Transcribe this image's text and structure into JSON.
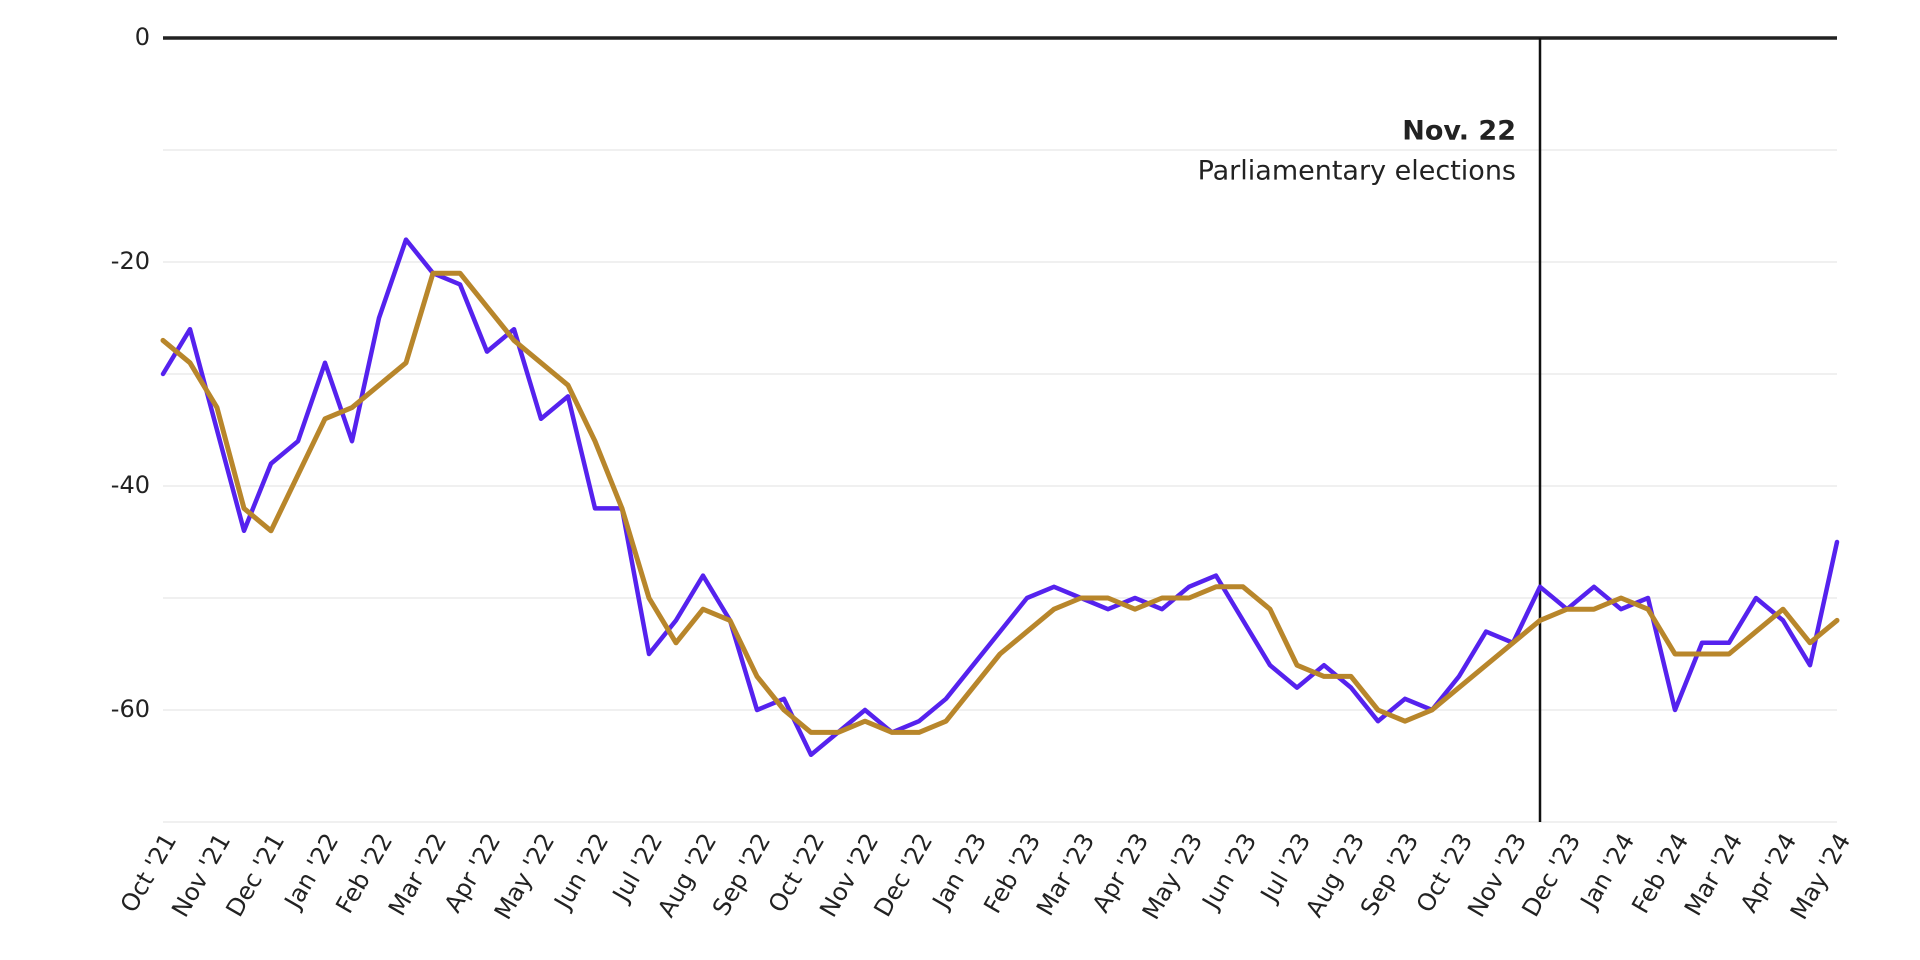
{
  "chart_data": {
    "type": "line",
    "categories": [
      "Oct '21",
      null,
      "Nov '21",
      null,
      "Dec '21",
      null,
      "Jan '22",
      null,
      "Feb '22",
      null,
      "Mar '22",
      null,
      "Apr '22",
      null,
      "May '22",
      null,
      "Jun '22",
      null,
      "Jul '22",
      null,
      "Aug '22",
      null,
      "Sep '22",
      null,
      "Oct '22",
      null,
      "Nov '22",
      null,
      "Dec '22",
      null,
      "Jan '23",
      null,
      "Feb '23",
      null,
      "Mar '23",
      null,
      "Apr '23",
      null,
      "May '23",
      null,
      "Jun '23",
      null,
      "Jul '23",
      null,
      "Aug '23",
      null,
      "Sep '23",
      null,
      "Oct '23",
      null,
      "Nov '23",
      null,
      "Dec '23",
      null,
      "Jan '24",
      null,
      "Feb '24",
      null,
      "Mar '24",
      null,
      "Apr '24",
      null,
      "May '24"
    ],
    "series": [
      {
        "color": "#5522ee",
        "values": [
          -30,
          -26,
          -35,
          -44,
          -38,
          -36,
          -29,
          -36,
          -25,
          -18,
          -21,
          -22,
          -28,
          -26,
          -34,
          -32,
          -42,
          -42,
          -55,
          -52,
          -48,
          -52,
          -60,
          -59,
          -64,
          -62,
          -60,
          -62,
          -61,
          -59,
          -56,
          -53,
          -50,
          -49,
          -50,
          -51,
          -50,
          -51,
          -49,
          -48,
          -52,
          -56,
          -58,
          -56,
          -58,
          -61,
          -59,
          -60,
          -57,
          -53,
          -54,
          -49,
          -51,
          -49,
          -51,
          -50,
          -60,
          -54,
          -54,
          -50,
          -52,
          -56,
          -45
        ]
      },
      {
        "color": "#b8862b",
        "values": [
          -27,
          -29,
          -33,
          -42,
          -44,
          -39,
          -34,
          -33,
          -31,
          -29,
          -21,
          -21,
          -24,
          -27,
          -29,
          -31,
          -36,
          -42,
          -50,
          -54,
          -51,
          -52,
          -57,
          -60,
          -62,
          -62,
          -61,
          -62,
          -62,
          -61,
          -58,
          -55,
          -53,
          -51,
          -50,
          -50,
          -51,
          -50,
          -50,
          -49,
          -49,
          -51,
          -56,
          -57,
          -57,
          -60,
          -61,
          -60,
          -58,
          -56,
          -54,
          -52,
          -51,
          -51,
          -50,
          -51,
          -55,
          -55,
          -55,
          -53,
          -51,
          -54,
          -52
        ]
      }
    ],
    "ylim": [
      -70,
      0
    ],
    "yticks": [
      0,
      -20,
      -40,
      -60
    ],
    "minor_yticks": [
      -10,
      -30,
      -50,
      -70
    ],
    "grid": true,
    "annotation": {
      "title": "Nov. 22",
      "text": "Parliamentary elections",
      "category_index": 51
    }
  }
}
